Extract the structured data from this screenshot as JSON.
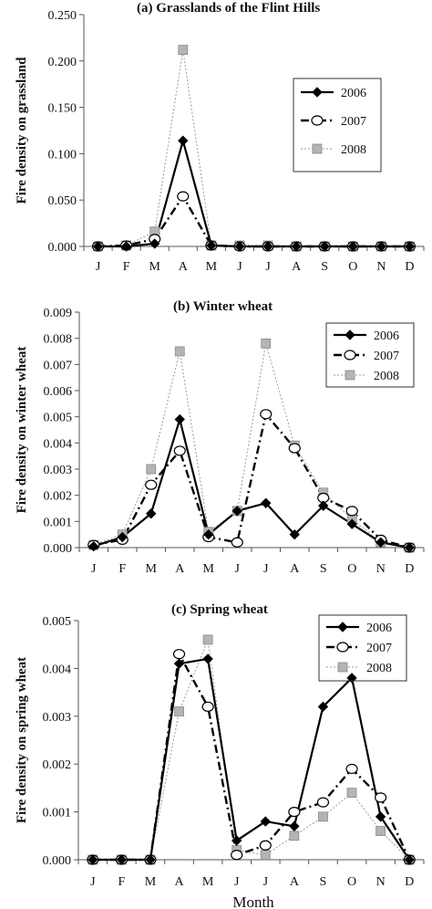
{
  "colors": {
    "s2006": "#000000",
    "s2007": "#000000",
    "s2008": "#9a9a9a",
    "marker2008": "#b4b4b4"
  },
  "xlabel": "Month",
  "chart_data": [
    {
      "type": "line",
      "title": "(a)  Grasslands of the Flint Hills",
      "ylabel": "Fire density on grassland",
      "categories": [
        "J",
        "F",
        "M",
        "A",
        "M",
        "J",
        "J",
        "A",
        "S",
        "O",
        "N",
        "D"
      ],
      "ylim": [
        0,
        0.25
      ],
      "yticks": [
        "0.000",
        "0.050",
        "0.100",
        "0.150",
        "0.200",
        "0.250"
      ],
      "legend": "upper-right",
      "series": [
        {
          "name": "2006",
          "values": [
            0.0,
            0.0,
            0.003,
            0.114,
            0.001,
            0.0,
            0.0,
            0.0,
            0.0,
            0.0,
            0.0,
            0.0
          ]
        },
        {
          "name": "2007",
          "values": [
            0.0,
            0.001,
            0.008,
            0.054,
            0.001,
            0.0,
            0.0,
            0.0,
            0.0,
            0.0,
            0.0,
            0.0
          ]
        },
        {
          "name": "2008",
          "values": [
            0.0,
            0.001,
            0.016,
            0.212,
            0.001,
            0.001,
            0.001,
            0.0,
            0.0,
            0.0,
            0.0,
            0.0
          ]
        }
      ]
    },
    {
      "type": "line",
      "title": "(b)  Winter wheat",
      "ylabel": "Fire density on winter wheat",
      "categories": [
        "J",
        "F",
        "M",
        "A",
        "M",
        "J",
        "J",
        "A",
        "S",
        "O",
        "N",
        "D"
      ],
      "ylim": [
        0,
        0.009
      ],
      "yticks": [
        "0.000",
        "0.001",
        "0.002",
        "0.003",
        "0.004",
        "0.005",
        "0.006",
        "0.007",
        "0.008",
        "0.009"
      ],
      "legend": "upper-right",
      "series": [
        {
          "name": "2006",
          "values": [
            5e-05,
            0.0004,
            0.0013,
            0.0049,
            0.0005,
            0.0014,
            0.0017,
            0.0005,
            0.0016,
            0.0009,
            0.0002,
            0.0
          ]
        },
        {
          "name": "2007",
          "values": [
            0.0001,
            0.0003,
            0.0024,
            0.0037,
            0.0004,
            0.0002,
            0.0051,
            0.0038,
            0.0019,
            0.0014,
            0.0003,
            0.0
          ]
        },
        {
          "name": "2008",
          "values": [
            0.0001,
            0.0005,
            0.003,
            0.0075,
            0.0006,
            0.0014,
            0.0078,
            0.0039,
            0.0021,
            0.0011,
            0.0002,
            0.0
          ]
        }
      ]
    },
    {
      "type": "line",
      "title": "(c)  Spring wheat",
      "ylabel": "Fire density on spring wheat",
      "categories": [
        "J",
        "F",
        "M",
        "A",
        "M",
        "J",
        "J",
        "A",
        "S",
        "O",
        "N",
        "D"
      ],
      "ylim": [
        0,
        0.005
      ],
      "yticks": [
        "0.000",
        "0.001",
        "0.002",
        "0.003",
        "0.004",
        "0.005"
      ],
      "legend": "upper-right",
      "series": [
        {
          "name": "2006",
          "values": [
            0.0,
            0.0,
            0.0,
            0.0041,
            0.0042,
            0.0004,
            0.0008,
            0.0007,
            0.0032,
            0.0038,
            0.0009,
            0.0
          ]
        },
        {
          "name": "2007",
          "values": [
            0.0,
            0.0,
            0.0,
            0.0043,
            0.0032,
            0.0001,
            0.0003,
            0.001,
            0.0012,
            0.0019,
            0.0013,
            0.0
          ]
        },
        {
          "name": "2008",
          "values": [
            0.0,
            0.0,
            0.0,
            0.0031,
            0.0046,
            0.0002,
            0.0001,
            0.0005,
            0.0009,
            0.0014,
            0.0006,
            0.0
          ]
        }
      ]
    }
  ]
}
